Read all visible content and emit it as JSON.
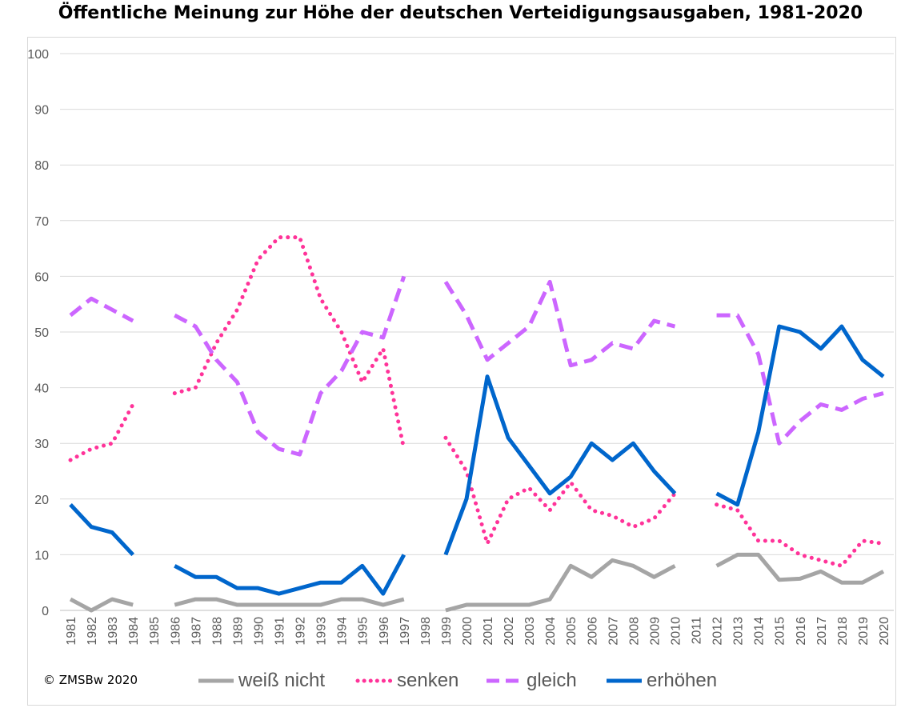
{
  "chart_data": {
    "type": "line",
    "title": "Öffentliche Meinung zur Höhe der deutschen Verteidigungsausgaben, 1981-2020",
    "xlabel": "",
    "ylabel": "",
    "ylim": [
      0,
      100
    ],
    "yticks": [
      "0",
      "10",
      "20",
      "30",
      "40",
      "50",
      "60",
      "70",
      "80",
      "90",
      "100"
    ],
    "categories": [
      "1981",
      "1982",
      "1983",
      "1984",
      "1985",
      "1986",
      "1987",
      "1988",
      "1989",
      "1990",
      "1991",
      "1992",
      "1993",
      "1994",
      "1995",
      "1996",
      "1997",
      "1998",
      "1999",
      "2000",
      "2001",
      "2002",
      "2003",
      "2004",
      "2005",
      "2006",
      "2007",
      "2008",
      "2009",
      "2010",
      "2011",
      "2012",
      "2013",
      "2014",
      "2015",
      "2016",
      "2017",
      "2018",
      "2019",
      "2020"
    ],
    "grid": true,
    "legend_position": "bottom",
    "series": [
      {
        "name": "weiß nicht",
        "color": "#a5a5a5",
        "style": "solid",
        "values": [
          2,
          0,
          2,
          1,
          null,
          1,
          2,
          2,
          1,
          1,
          1,
          1,
          1,
          2,
          2,
          1,
          2,
          null,
          0,
          1,
          1,
          1,
          1,
          2,
          8,
          6,
          9,
          8,
          6,
          8,
          null,
          8,
          10,
          10,
          5.5,
          5.7,
          7,
          5,
          5,
          7
        ]
      },
      {
        "name": "senken",
        "color": "#ff3399",
        "style": "dotted",
        "values": [
          27,
          29,
          30,
          37,
          null,
          39,
          40,
          48,
          54,
          63,
          67,
          67,
          56,
          50,
          41,
          47,
          29,
          null,
          31,
          25,
          12,
          20,
          22,
          18,
          23,
          18,
          17,
          15,
          16.5,
          21,
          null,
          19,
          18,
          12.5,
          12.5,
          10,
          9,
          8,
          12.5,
          12
        ]
      },
      {
        "name": "gleich",
        "color": "#cc66ff",
        "style": "dashed",
        "values": [
          53,
          56,
          54,
          52,
          null,
          53,
          51,
          45,
          41,
          32,
          29,
          28,
          39,
          43,
          50,
          49,
          60,
          null,
          59,
          53,
          45,
          48,
          51,
          59,
          44,
          45,
          48,
          47,
          52,
          51,
          null,
          53,
          53,
          46,
          30,
          34,
          37,
          36,
          38,
          39
        ]
      },
      {
        "name": "erhöhen",
        "color": "#0066cc",
        "style": "solid",
        "values": [
          19,
          15,
          14,
          10,
          null,
          8,
          6,
          6,
          4,
          4,
          3,
          4,
          5,
          5,
          8,
          3,
          10,
          null,
          10,
          20,
          42,
          31,
          26,
          21,
          24,
          30,
          27,
          30,
          25,
          21,
          null,
          21,
          19,
          32,
          51,
          50,
          47,
          51,
          45,
          42
        ]
      }
    ]
  },
  "footer": {
    "copyright": "© ZMSBw 2020"
  }
}
